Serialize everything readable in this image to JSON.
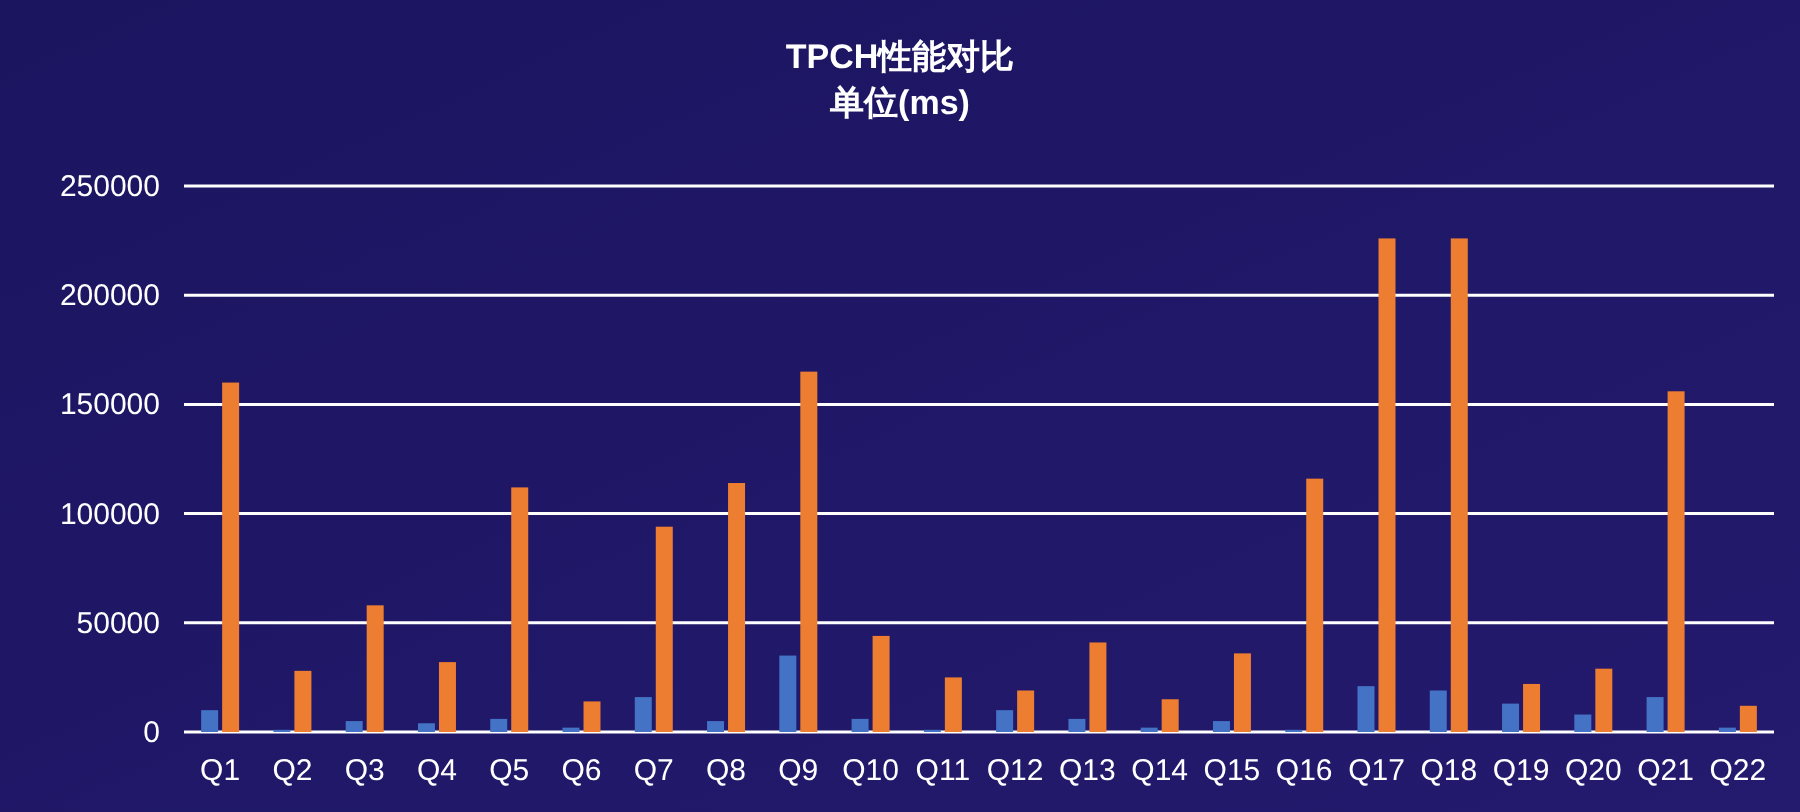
{
  "chart_data": {
    "type": "bar",
    "title": "TPCH性能对比",
    "subtitle": "单位(ms)",
    "categories": [
      "Q1",
      "Q2",
      "Q3",
      "Q4",
      "Q5",
      "Q6",
      "Q7",
      "Q8",
      "Q9",
      "Q10",
      "Q11",
      "Q12",
      "Q13",
      "Q14",
      "Q15",
      "Q16",
      "Q17",
      "Q18",
      "Q19",
      "Q20",
      "Q21",
      "Q22"
    ],
    "series": [
      {
        "color": "#4472c4",
        "values": [
          10000,
          1000,
          5000,
          4000,
          6000,
          2000,
          16000,
          5000,
          35000,
          6000,
          1000,
          10000,
          6000,
          2000,
          5000,
          1000,
          21000,
          19000,
          13000,
          8000,
          16000,
          2000
        ]
      },
      {
        "color": "#ed7d31",
        "values": [
          160000,
          28000,
          58000,
          32000,
          112000,
          14000,
          94000,
          114000,
          165000,
          44000,
          25000,
          19000,
          41000,
          15000,
          36000,
          116000,
          226000,
          226000,
          22000,
          29000,
          156000,
          12000
        ]
      }
    ],
    "ylim": [
      0,
      250000
    ],
    "yticks": [
      0,
      50000,
      100000,
      150000,
      200000,
      250000
    ],
    "grid": "y"
  }
}
